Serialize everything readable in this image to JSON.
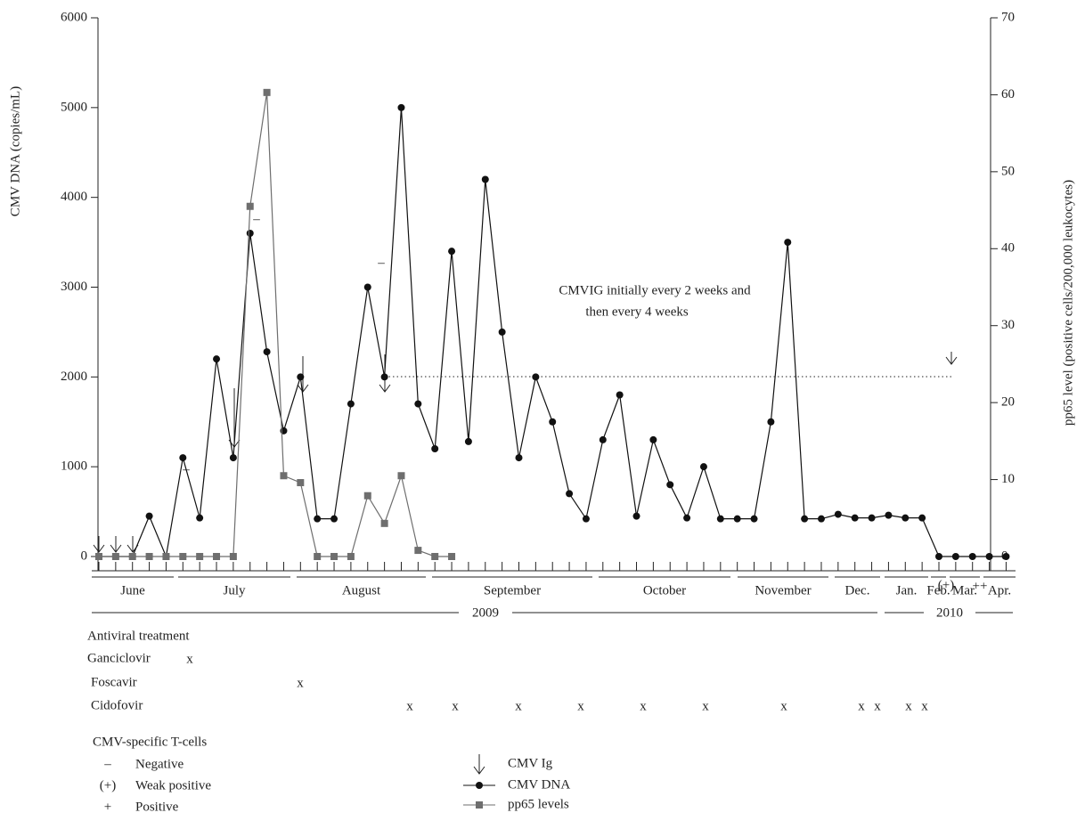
{
  "chart_data": {
    "type": "line",
    "y_label": "CMV DNA (copies/mL)",
    "y2_label": "pp65 level (positive cells/200,000 leukocytes)",
    "categories": [
      null,
      null,
      null,
      null,
      null,
      null,
      null,
      null,
      null,
      null,
      null,
      null,
      null,
      null,
      null,
      null,
      null,
      null,
      null,
      null,
      null,
      null,
      null,
      null,
      null,
      null,
      null,
      null,
      null,
      null,
      null,
      null,
      null,
      null,
      null,
      null,
      null,
      null,
      null,
      null,
      null,
      null,
      null,
      null,
      null,
      null,
      null,
      null,
      null,
      null,
      null,
      null,
      null,
      null,
      null
    ],
    "series": [
      {
        "name": "CMV DNA",
        "color": "#111111",
        "marker": "circle",
        "values": [
          0,
          0,
          0,
          450,
          0,
          1100,
          430,
          2200,
          1100,
          3600,
          2280,
          1400,
          2000,
          420,
          420,
          1700,
          3000,
          2000,
          5000,
          1700,
          1200,
          3400,
          1280,
          4200,
          2500,
          1100,
          2000,
          1500,
          700,
          420,
          1300,
          1800,
          450,
          1300,
          800,
          430,
          1000,
          420,
          420,
          420,
          1500,
          3500,
          420,
          420,
          470,
          430,
          430,
          460,
          430,
          430,
          0,
          0,
          0,
          0,
          0
        ]
      },
      {
        "name": "pp65 levels",
        "color": "#6e6e6e",
        "marker": "square",
        "axis": "y2",
        "values": [
          0,
          0,
          0,
          0,
          0,
          0,
          0,
          0,
          0,
          45.5,
          60.3,
          10.5,
          9.6,
          0,
          0,
          0,
          7.9,
          4.3,
          10.5,
          0.8,
          0,
          0,
          null,
          null,
          null,
          null,
          null,
          null,
          null,
          null,
          null,
          null,
          null,
          null,
          null,
          null,
          null,
          null,
          null,
          null,
          null,
          null,
          null,
          null,
          null,
          null,
          null,
          null,
          null,
          null,
          null,
          null,
          null,
          null,
          null
        ]
      }
    ],
    "ylim": [
      0,
      6000
    ],
    "yticks": [
      0,
      1000,
      2000,
      3000,
      4000,
      5000,
      6000
    ],
    "y2lim": [
      0,
      70
    ],
    "y2ticks": [
      0,
      10,
      20,
      30,
      40,
      50,
      60,
      70
    ],
    "months": [
      "June",
      "July",
      "August",
      "September",
      "October",
      "November",
      "Dec.",
      "Jan.",
      "Feb.",
      "Mar.",
      "Apr."
    ],
    "years": [
      "2009",
      "2010"
    ],
    "annotations": {
      "cmvig_text": [
        "CMVIG initially every 2 weeks and",
        "then every 4 weeks"
      ],
      "tcell_marks": [
        "–",
        "–",
        "–",
        "(+)",
        "++"
      ]
    },
    "treatment": {
      "title": "Antiviral treatment",
      "drugs": [
        {
          "name": "Ganciclovir",
          "marks": [
            "x"
          ]
        },
        {
          "name": "Foscavir",
          "marks": [
            "x"
          ]
        },
        {
          "name": "Cidofovir",
          "marks": [
            "x",
            "x",
            "x",
            "x",
            "x",
            "x",
            "x",
            "x",
            "x",
            "x",
            "x"
          ]
        }
      ]
    },
    "tcells": {
      "title": "CMV-specific T-cells",
      "items": [
        {
          "symbol": "–",
          "label": "Negative"
        },
        {
          "symbol": "(+)",
          "label": "Weak positive"
        },
        {
          "symbol": "+",
          "label": "Positive"
        }
      ]
    },
    "arrow_legend": "CMV Ig"
  }
}
